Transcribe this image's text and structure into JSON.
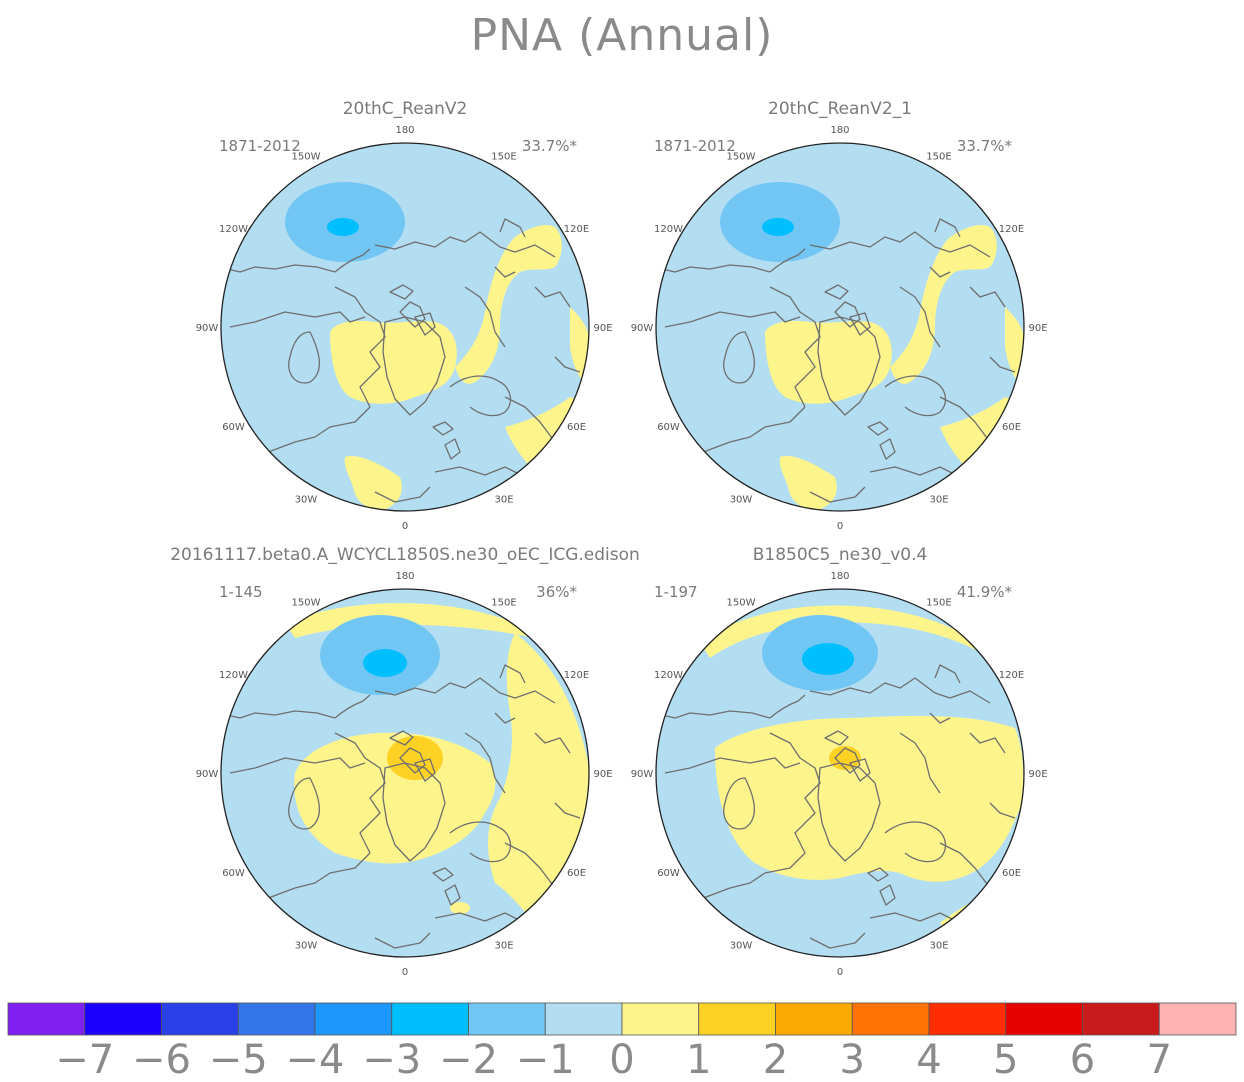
{
  "title": "PNA (Annual)",
  "colors": {
    "ocean_blue": "#b3def2",
    "mid_blue": "#72c6f3",
    "strong_blue": "#00bffe",
    "pale_yellow": "#fdf58c",
    "orange_yellow": "#fed225",
    "coast": "#6e6e6e"
  },
  "longitude_labels": [
    "180",
    "150E",
    "120E",
    "90E",
    "60E",
    "30E",
    "0",
    "30W",
    "60W",
    "90W",
    "120W",
    "150W"
  ],
  "panels": [
    {
      "name": "20thC_ReanV2",
      "period": "1871-2012",
      "variance": "33.7%*"
    },
    {
      "name": "20thC_ReanV2_1",
      "period": "1871-2012",
      "variance": "33.7%*"
    },
    {
      "name": "20161117.beta0.A_WCYCL1850S.ne30_oEC_ICG.edison",
      "period": "1-145",
      "variance": "36%*"
    },
    {
      "name": "B1850C5_ne30_v0.4",
      "period": "1-197",
      "variance": "41.9%*"
    }
  ],
  "colorbar": {
    "labels": [
      "-7",
      "-6",
      "-5",
      "-4",
      "-3",
      "-2",
      "-1",
      "0",
      "1",
      "2",
      "3",
      "4",
      "5",
      "6",
      "7"
    ],
    "colors": [
      "#7f1ff1",
      "#1b01fe",
      "#2a40eb",
      "#3375ea",
      "#1c97fd",
      "#00bffe",
      "#72c6f3",
      "#b3def2",
      "#fdf58c",
      "#fed225",
      "#fda904",
      "#fd7305",
      "#fe2d01",
      "#e60000",
      "#c91b1b",
      "#ffb4b4"
    ]
  }
}
